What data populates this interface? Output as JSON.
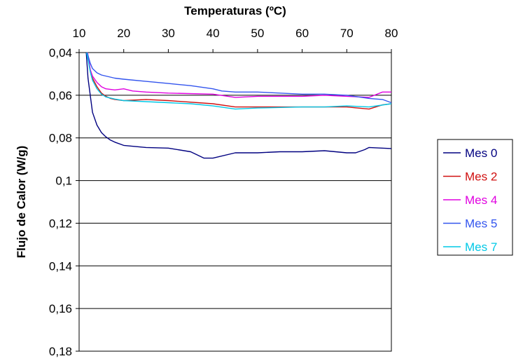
{
  "chart_data": {
    "type": "line",
    "title": "Temperaturas (ºC)",
    "xlabel": "Temperaturas (ºC)",
    "ylabel": "Flujo de Calor (W/g)",
    "xlim": [
      10,
      80
    ],
    "ylim": [
      0.04,
      0.18
    ],
    "y_reversed": true,
    "x_axis_position": "top",
    "grid": "horizontal",
    "legend": "right",
    "x_ticks": [
      "10",
      "20",
      "30",
      "40",
      "50",
      "60",
      "70",
      "80"
    ],
    "y_ticks": [
      "0,04",
      "0,06",
      "0,08",
      "0,1",
      "0,12",
      "0,14",
      "0,16",
      "0,18"
    ],
    "series": [
      {
        "name": "Mes 0",
        "color": "#000080",
        "x": [
          11.6,
          12,
          13,
          14,
          15,
          16,
          17,
          18,
          20,
          25,
          30,
          35,
          38,
          40,
          45,
          50,
          55,
          60,
          65,
          70,
          72,
          74,
          75,
          80
        ],
        "y": [
          0.04,
          0.052,
          0.068,
          0.074,
          0.0775,
          0.0795,
          0.081,
          0.082,
          0.0835,
          0.0845,
          0.0848,
          0.0865,
          0.0895,
          0.0895,
          0.087,
          0.087,
          0.0865,
          0.0865,
          0.086,
          0.087,
          0.087,
          0.0855,
          0.0845,
          0.085
        ]
      },
      {
        "name": "Mes 2",
        "color": "#d01010",
        "x": [
          11.8,
          12.5,
          13,
          14,
          15,
          16,
          17,
          18,
          20,
          25,
          30,
          40,
          45,
          50,
          60,
          70,
          75,
          78,
          80
        ],
        "y": [
          0.04,
          0.048,
          0.052,
          0.056,
          0.059,
          0.0605,
          0.0615,
          0.062,
          0.0625,
          0.062,
          0.0625,
          0.064,
          0.0655,
          0.0655,
          0.0655,
          0.0655,
          0.0665,
          0.0645,
          0.064
        ]
      },
      {
        "name": "Mes 4",
        "color": "#e000e0",
        "x": [
          11.9,
          12.5,
          13,
          14,
          15,
          16,
          18,
          20,
          22,
          25,
          30,
          40,
          45,
          50,
          60,
          65,
          70,
          75,
          78,
          80
        ],
        "y": [
          0.04,
          0.048,
          0.051,
          0.054,
          0.056,
          0.057,
          0.0575,
          0.057,
          0.058,
          0.0585,
          0.059,
          0.0595,
          0.061,
          0.0605,
          0.0605,
          0.06,
          0.0605,
          0.061,
          0.0585,
          0.0585
        ]
      },
      {
        "name": "Mes 5",
        "color": "#3355ee",
        "x": [
          11.8,
          12.5,
          13,
          14,
          15,
          16,
          18,
          20,
          25,
          30,
          35,
          40,
          42,
          45,
          50,
          60,
          65,
          70,
          75,
          78,
          80
        ],
        "y": [
          0.04,
          0.045,
          0.0475,
          0.0495,
          0.0505,
          0.051,
          0.052,
          0.0525,
          0.0535,
          0.0545,
          0.0555,
          0.057,
          0.058,
          0.0585,
          0.0585,
          0.0595,
          0.0595,
          0.06,
          0.0615,
          0.062,
          0.0635
        ]
      },
      {
        "name": "Mes 7",
        "color": "#00c8e6",
        "x": [
          11.7,
          12.5,
          13,
          14,
          15,
          16,
          18,
          20,
          25,
          30,
          35,
          40,
          45,
          50,
          60,
          65,
          70,
          75,
          80
        ],
        "y": [
          0.04,
          0.049,
          0.053,
          0.057,
          0.0595,
          0.0608,
          0.0618,
          0.0625,
          0.063,
          0.0635,
          0.064,
          0.065,
          0.0665,
          0.066,
          0.0655,
          0.0655,
          0.065,
          0.0655,
          0.064
        ]
      }
    ]
  }
}
